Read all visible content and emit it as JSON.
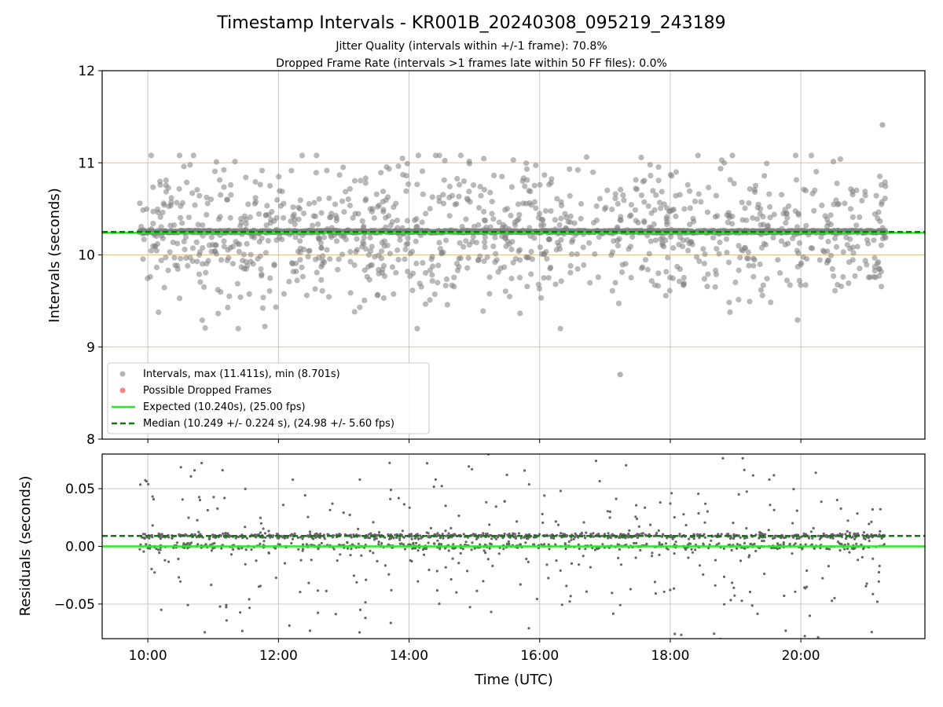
{
  "colors": {
    "intervals": "#808080",
    "dropped": "#ff4d4d",
    "expected": "#22ee22",
    "median": "#117711",
    "frame_band": "#d8b26e",
    "grid": "#c8c8c8",
    "axes": "#000000"
  },
  "chart_data": [
    {
      "type": "scatter",
      "panel": "intervals",
      "title": "Timestamp Intervals - KR001B_20240308_095219_243189",
      "subtitle_lines": [
        "Jitter Quality (intervals within +/-1 frame): 70.8%",
        "Dropped Frame Rate (intervals >1 frames late within 50 FF files): 0.0%"
      ],
      "xlabel": "",
      "ylabel": "Intervals (seconds)",
      "xlim": [
        "09:18",
        "21:54"
      ],
      "ylim": [
        8,
        12
      ],
      "yticks": [
        "8",
        "9",
        "10",
        "11",
        "12"
      ],
      "grid": "vertical",
      "data_range": {
        "start": "09:52",
        "end": "21:18"
      },
      "expected": 10.24,
      "median": 10.249,
      "max": 11.411,
      "min": 8.701,
      "frame_lines": [
        9,
        10,
        11
      ],
      "legend_placement": "lower-left",
      "legend": [
        {
          "key": "intervals",
          "label": "Intervals, max (11.411s), min (8.701s)"
        },
        {
          "key": "dropped",
          "label": "Possible Dropped Frames"
        },
        {
          "key": "expected",
          "label": "Expected (10.240s), (25.00 fps)"
        },
        {
          "key": "median",
          "label": "Median (10.249 +/- 0.224 s), (24.98 +/- 5.60 fps)"
        }
      ]
    },
    {
      "type": "scatter",
      "panel": "residuals",
      "xlabel": "Time (UTC)",
      "ylabel": "Residuals (seconds)",
      "xlim": [
        "09:18",
        "21:54"
      ],
      "ylim": [
        -0.08,
        0.08
      ],
      "xticks": [
        "10:00",
        "12:00",
        "14:00",
        "16:00",
        "18:00",
        "20:00"
      ],
      "yticks": [
        "−0.05",
        "0.00",
        "0.05"
      ],
      "grid": "both",
      "expected": 0.0,
      "median": 0.009
    }
  ]
}
